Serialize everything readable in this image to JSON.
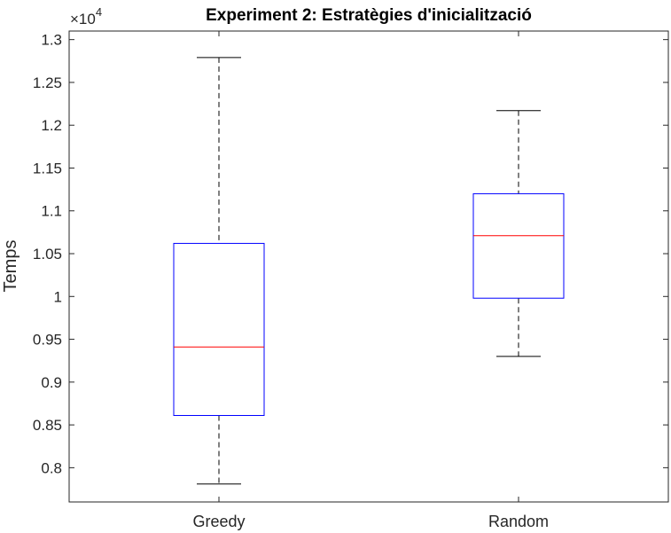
{
  "chart_data": {
    "type": "box",
    "title": "Experiment 2: Estratègies d'inicialització",
    "xlabel": "",
    "ylabel": "Temps",
    "exponent_base": "×10",
    "exponent_power": "4",
    "ylim": [
      0.76,
      1.31
    ],
    "yticks": [
      0.8,
      0.85,
      0.9,
      0.95,
      1,
      1.05,
      1.1,
      1.15,
      1.2,
      1.25,
      1.3
    ],
    "ytick_labels": [
      "0.8",
      "0.85",
      "0.9",
      "0.95",
      "1",
      "1.05",
      "1.1",
      "1.15",
      "1.2",
      "1.25",
      "1.3"
    ],
    "categories": [
      "Greedy",
      "Random"
    ],
    "boxes": [
      {
        "category": "Greedy",
        "whisker_low": 0.781,
        "q1": 0.861,
        "median": 0.941,
        "q3": 1.062,
        "whisker_high": 1.279
      },
      {
        "category": "Random",
        "whisker_low": 0.93,
        "q1": 0.998,
        "median": 1.071,
        "q3": 1.12,
        "whisker_high": 1.217
      }
    ],
    "colors": {
      "box": "#0000ff",
      "median": "#ff0000",
      "whisker": "#000000",
      "axes": "#262626"
    }
  }
}
